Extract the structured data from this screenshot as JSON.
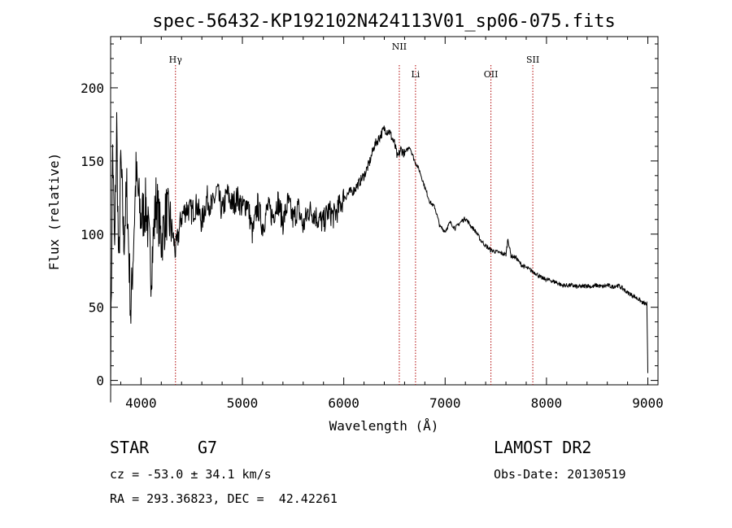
{
  "chart_data": {
    "type": "line",
    "title": "spec-56432-KP192102N424113V01_sp06-075.fits",
    "xlabel": "Wavelength (Å)",
    "ylabel": "Flux (relative)",
    "xlim": [
      3700,
      9100
    ],
    "ylim": [
      -3,
      235
    ],
    "xticks": [
      4000,
      5000,
      6000,
      7000,
      8000,
      9000
    ],
    "yticks": [
      0,
      50,
      100,
      150,
      200
    ],
    "grid": false,
    "series": [
      {
        "x": [
          3700,
          3720,
          3740,
          3760,
          3780,
          3800,
          3830,
          3860,
          3900,
          3950,
          4000,
          4050,
          4100,
          4150,
          4200,
          4250,
          4300,
          4340,
          4400,
          4450,
          4500,
          4550,
          4600,
          4650,
          4700,
          4750,
          4800,
          4850,
          4900,
          4950,
          5000,
          5050,
          5100,
          5150,
          5200,
          5250,
          5300,
          5350,
          5400,
          5450,
          5500,
          5550,
          5600,
          5650,
          5700,
          5750,
          5800,
          5850,
          5900,
          5950,
          6000,
          6050,
          6100,
          6150,
          6200,
          6250,
          6300,
          6350,
          6400,
          6450,
          6500,
          6530,
          6563,
          6600,
          6650,
          6700,
          6750,
          6800,
          6850,
          6900,
          6950,
          7000,
          7050,
          7100,
          7150,
          7200,
          7250,
          7300,
          7350,
          7400,
          7450,
          7500,
          7550,
          7600,
          7620,
          7650,
          7700,
          7750,
          7800,
          7850,
          7900,
          7950,
          8000,
          8050,
          8100,
          8150,
          8200,
          8250,
          8300,
          8350,
          8400,
          8450,
          8500,
          8550,
          8600,
          8650,
          8700,
          8750,
          8800,
          8850,
          8900,
          8950,
          8990,
          9000
        ],
        "y": [
          5,
          160,
          85,
          175,
          70,
          150,
          95,
          130,
          45,
          140,
          110,
          120,
          75,
          125,
          95,
          115,
          105,
          88,
          112,
          118,
          115,
          120,
          108,
          125,
          118,
          130,
          115,
          128,
          120,
          125,
          118,
          122,
          100,
          120,
          105,
          118,
          112,
          123,
          108,
          122,
          110,
          118,
          105,
          116,
          115,
          110,
          108,
          116,
          112,
          118,
          125,
          128,
          130,
          135,
          140,
          148,
          160,
          166,
          172,
          170,
          162,
          152,
          158,
          155,
          160,
          150,
          143,
          132,
          122,
          118,
          105,
          102,
          108,
          104,
          108,
          111,
          106,
          102,
          96,
          92,
          89,
          88,
          87,
          86,
          97,
          85,
          84,
          79,
          77,
          75,
          73,
          70,
          69,
          68,
          67,
          65,
          65,
          65,
          64,
          64,
          65,
          64,
          65,
          64,
          65,
          64,
          65,
          63,
          60,
          58,
          56,
          53,
          52,
          5
        ]
      }
    ],
    "line_markers": [
      {
        "label": "Hγ",
        "x": 4340
      },
      {
        "label": "NII",
        "x": 6548
      },
      {
        "label": "Li",
        "x": 6708
      },
      {
        "label": "OII",
        "x": 7452
      },
      {
        "label": "SII",
        "x": 7865
      }
    ]
  },
  "info": {
    "object_type": "STAR",
    "subclass": "G7",
    "survey": "LAMOST DR2",
    "cz": "cz = -53.0 ± 34.1 km/s",
    "obs_date": "Obs-Date: 20130519",
    "coords": "RA = 293.36823, DEC =  42.42261"
  }
}
